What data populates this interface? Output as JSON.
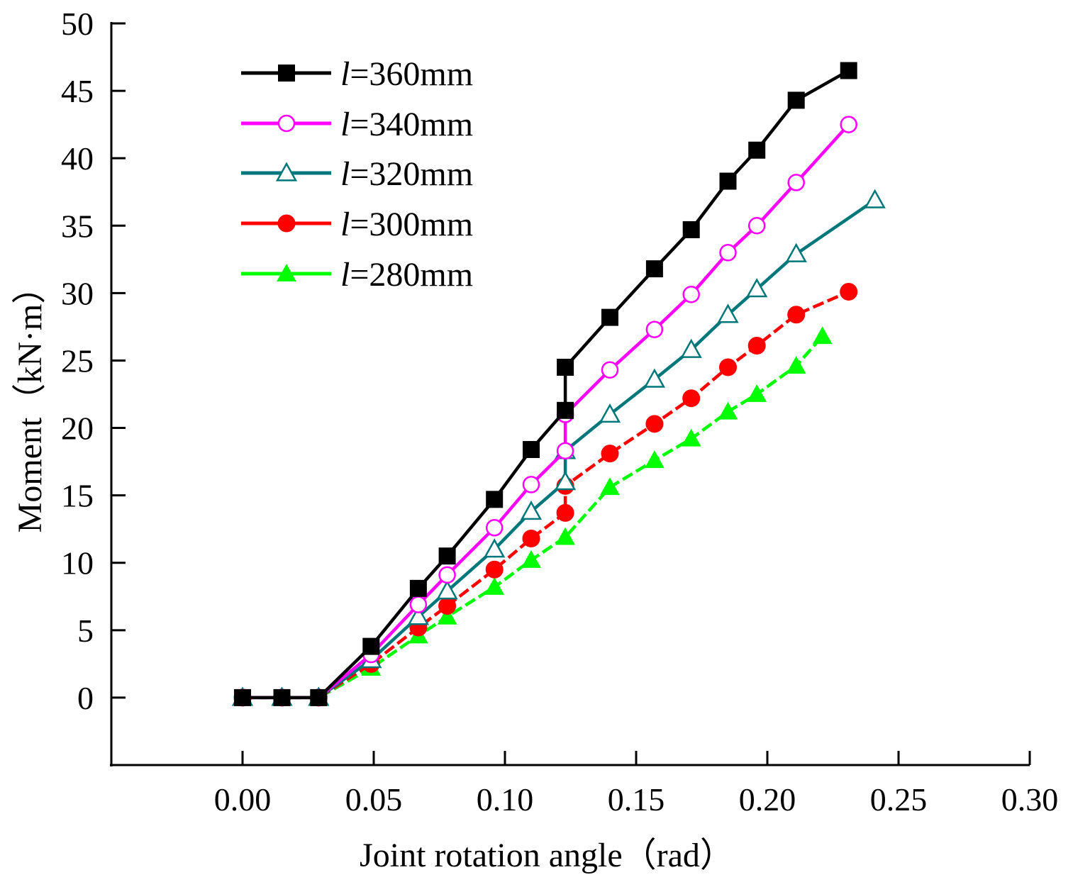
{
  "chart_data": {
    "type": "line",
    "title": "",
    "xlabel": "Joint rotation angle（rad）",
    "ylabel": "Moment（kN·m）",
    "xlim": [
      -0.05,
      0.3
    ],
    "ylim": [
      -5,
      50
    ],
    "xticks": [
      0.0,
      0.05,
      0.1,
      0.15,
      0.2,
      0.25,
      0.3
    ],
    "xtick_labels": [
      "0.00",
      "0.05",
      "0.10",
      "0.15",
      "0.20",
      "0.25",
      "0.30"
    ],
    "yticks": [
      0,
      5,
      10,
      15,
      20,
      25,
      30,
      35,
      40,
      45,
      50
    ],
    "ytick_labels": [
      "0",
      "5",
      "10",
      "15",
      "20",
      "25",
      "30",
      "35",
      "40",
      "45",
      "50"
    ],
    "grid": false,
    "legend_position": "top-left",
    "series": [
      {
        "name": "l=360mm",
        "var": "l",
        "rest": "=360mm",
        "color": "#000000",
        "marker": "square-filled",
        "x": [
          0.0,
          0.015,
          0.029,
          0.049,
          0.067,
          0.078,
          0.096,
          0.11,
          0.123,
          0.123,
          0.14,
          0.157,
          0.171,
          0.185,
          0.196,
          0.211,
          0.231
        ],
        "y": [
          0.0,
          0.0,
          0.0,
          3.8,
          8.1,
          10.5,
          14.7,
          18.4,
          21.3,
          24.5,
          28.2,
          31.8,
          34.7,
          38.3,
          40.6,
          44.3,
          46.5
        ]
      },
      {
        "name": "l=340mm",
        "var": "l",
        "rest": "=340mm",
        "color": "#ff00ff",
        "marker": "circle-open",
        "x": [
          0.0,
          0.015,
          0.029,
          0.049,
          0.067,
          0.078,
          0.096,
          0.11,
          0.123,
          0.123,
          0.14,
          0.157,
          0.171,
          0.185,
          0.196,
          0.211,
          0.231
        ],
        "y": [
          0.0,
          0.0,
          0.0,
          3.2,
          6.9,
          9.1,
          12.6,
          15.8,
          18.3,
          21.0,
          24.3,
          27.3,
          29.9,
          33.0,
          35.0,
          38.2,
          42.5
        ]
      },
      {
        "name": "l=320mm",
        "var": "l",
        "rest": "=320mm",
        "color": "#00777a",
        "marker": "triangle-open",
        "x": [
          0.0,
          0.015,
          0.029,
          0.049,
          0.067,
          0.078,
          0.096,
          0.11,
          0.123,
          0.123,
          0.14,
          0.157,
          0.171,
          0.185,
          0.196,
          0.211,
          0.241
        ],
        "y": [
          0.0,
          0.0,
          0.0,
          2.8,
          6.0,
          7.9,
          11.0,
          13.8,
          16.0,
          18.3,
          21.0,
          23.6,
          25.8,
          28.4,
          30.3,
          32.9,
          36.9
        ]
      },
      {
        "name": "l=300mm",
        "var": "l",
        "rest": "=300mm",
        "color": "#ff0000",
        "marker": "circle-filled",
        "x": [
          0.0,
          0.015,
          0.029,
          0.049,
          0.067,
          0.078,
          0.096,
          0.11,
          0.123,
          0.123,
          0.14,
          0.157,
          0.171,
          0.185,
          0.196,
          0.211,
          0.231
        ],
        "y": [
          0.0,
          0.0,
          0.0,
          2.5,
          5.2,
          6.8,
          9.5,
          11.8,
          13.7,
          15.7,
          18.1,
          20.3,
          22.2,
          24.5,
          26.1,
          28.4,
          30.1
        ]
      },
      {
        "name": "l=280mm",
        "var": "l",
        "rest": "=280mm",
        "color": "#00ff00",
        "marker": "triangle-filled",
        "x": [
          0.0,
          0.015,
          0.029,
          0.049,
          0.067,
          0.078,
          0.096,
          0.11,
          0.123,
          0.14,
          0.157,
          0.171,
          0.185,
          0.196,
          0.211,
          0.221
        ],
        "y": [
          0.0,
          0.0,
          0.0,
          2.2,
          4.6,
          6.0,
          8.2,
          10.2,
          11.9,
          15.6,
          17.6,
          19.2,
          21.2,
          22.5,
          24.6,
          26.8
        ]
      }
    ]
  }
}
